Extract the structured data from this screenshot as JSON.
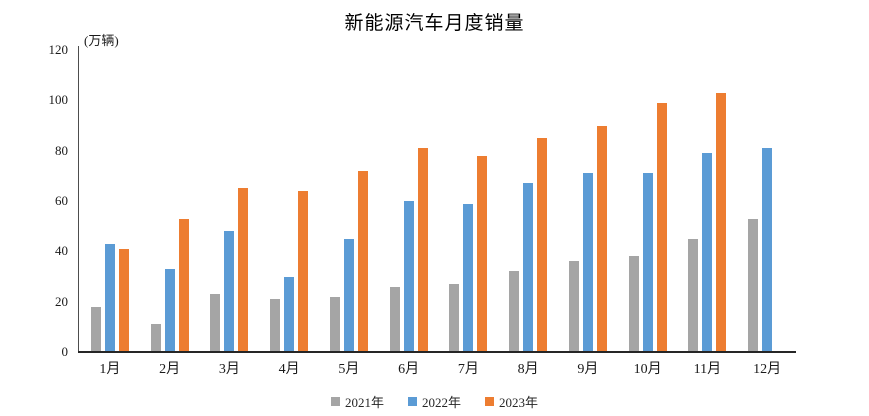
{
  "chart_data": {
    "type": "bar",
    "title": "新能源汽车月度销量",
    "unit_label": "(万辆)",
    "categories": [
      "1月",
      "2月",
      "3月",
      "4月",
      "5月",
      "6月",
      "7月",
      "8月",
      "9月",
      "10月",
      "11月",
      "12月"
    ],
    "series": [
      {
        "name": "2021年",
        "color": "#A5A5A5",
        "values": [
          18,
          11,
          23,
          21,
          22,
          26,
          27,
          32,
          36,
          38,
          45,
          53
        ]
      },
      {
        "name": "2022年",
        "color": "#5B9BD5",
        "values": [
          43,
          33,
          48,
          30,
          45,
          60,
          59,
          67,
          71,
          71,
          79,
          81
        ]
      },
      {
        "name": "2023年",
        "color": "#ED7D31",
        "values": [
          41,
          53,
          65,
          64,
          72,
          81,
          78,
          85,
          90,
          99,
          103,
          null
        ]
      }
    ],
    "ylim": [
      0,
      120
    ],
    "yticks": [
      0,
      20,
      40,
      60,
      80,
      100,
      120
    ],
    "xlabel": "",
    "ylabel": "",
    "grid": false,
    "legend_position": "bottom"
  }
}
